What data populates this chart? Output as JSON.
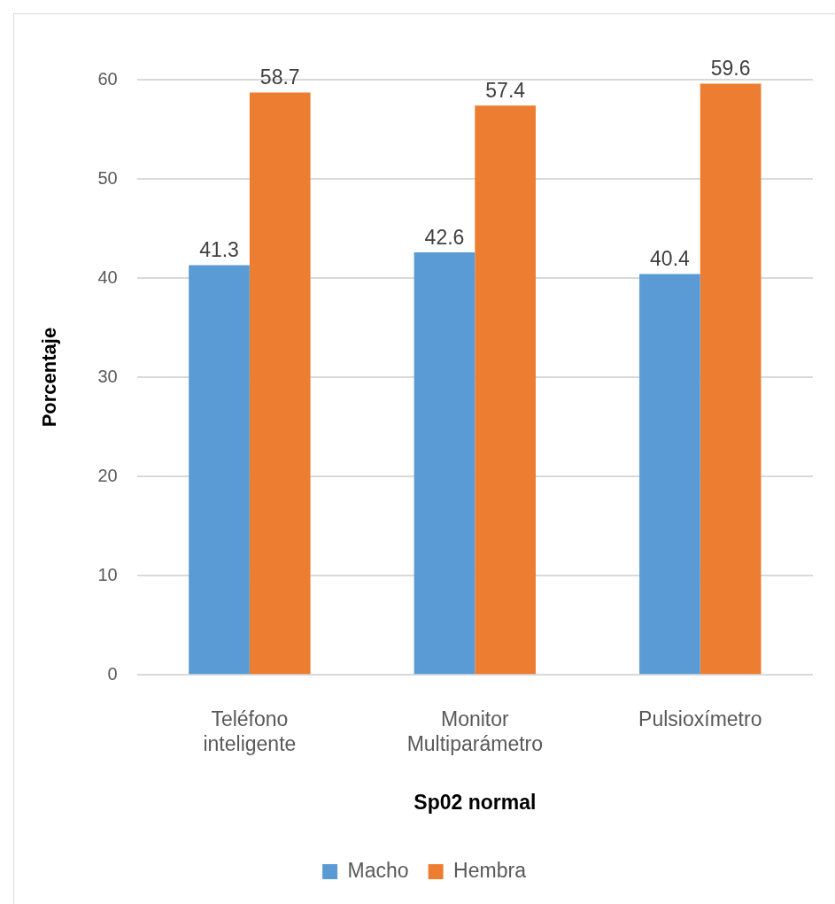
{
  "chart_data": {
    "type": "bar",
    "xlabel": "Sp02 normal",
    "ylabel": "Porcentaje",
    "categories": [
      "Teléfono inteligente",
      "Monitor Multiparámetro",
      "Pulsioxímetro"
    ],
    "series": [
      {
        "name": "Macho",
        "color": "#5b9bd5",
        "values": [
          41.3,
          42.6,
          40.4
        ]
      },
      {
        "name": "Hembra",
        "color": "#ed7d31",
        "values": [
          58.7,
          57.4,
          59.6
        ]
      }
    ],
    "ylim": [
      0,
      60
    ],
    "yticks": [
      0,
      10,
      20,
      30,
      40,
      50,
      60
    ],
    "grid": "y",
    "legend": "bottom",
    "data_labels": true
  }
}
